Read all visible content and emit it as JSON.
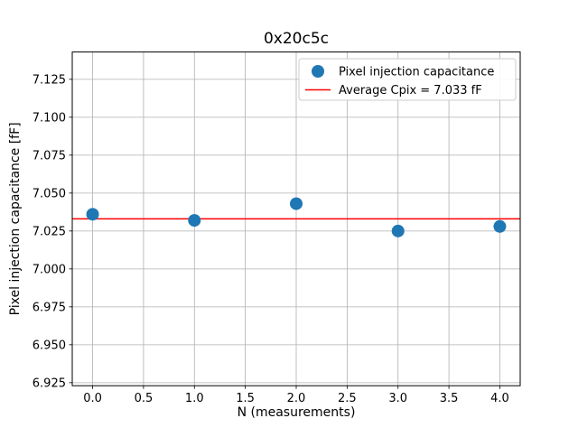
{
  "window": {
    "background": "#ffffff"
  },
  "chart_data": {
    "type": "scatter",
    "title": "0x20c5c",
    "xlabel": "N (measurements)",
    "ylabel": "Pixel injection capacitance [fF]",
    "x": [
      0.0,
      1.0,
      2.0,
      3.0,
      4.0
    ],
    "y": [
      7.036,
      7.032,
      7.043,
      7.025,
      7.028
    ],
    "series": [
      {
        "name": "Pixel injection capacitance",
        "marker": "circle",
        "color": "#1f77b4"
      }
    ],
    "average_line": {
      "value": 7.033,
      "color": "#ff0000",
      "label": "Average Cpix = 7.033 fF"
    },
    "xlim": [
      -0.2,
      4.2
    ],
    "ylim": [
      6.923,
      7.143
    ],
    "xticks": [
      0.0,
      0.5,
      1.0,
      1.5,
      2.0,
      2.5,
      3.0,
      3.5,
      4.0
    ],
    "xtick_labels": [
      "0.0",
      "0.5",
      "1.0",
      "1.5",
      "2.0",
      "2.5",
      "3.0",
      "3.5",
      "4.0"
    ],
    "yticks": [
      6.925,
      6.95,
      6.975,
      7.0,
      7.025,
      7.05,
      7.075,
      7.1,
      7.125
    ],
    "ytick_labels": [
      "6.925",
      "6.950",
      "6.975",
      "7.000",
      "7.025",
      "7.050",
      "7.075",
      "7.100",
      "7.125"
    ],
    "grid": true,
    "grid_color": "#b0b0b0",
    "frame_color": "#000000",
    "legend": {
      "position": "upper right",
      "entries": [
        {
          "label": "Pixel injection capacitance",
          "handle": "marker",
          "color": "#1f77b4"
        },
        {
          "label": "Average Cpix = 7.033 fF",
          "handle": "line",
          "color": "#ff0000"
        }
      ]
    }
  }
}
